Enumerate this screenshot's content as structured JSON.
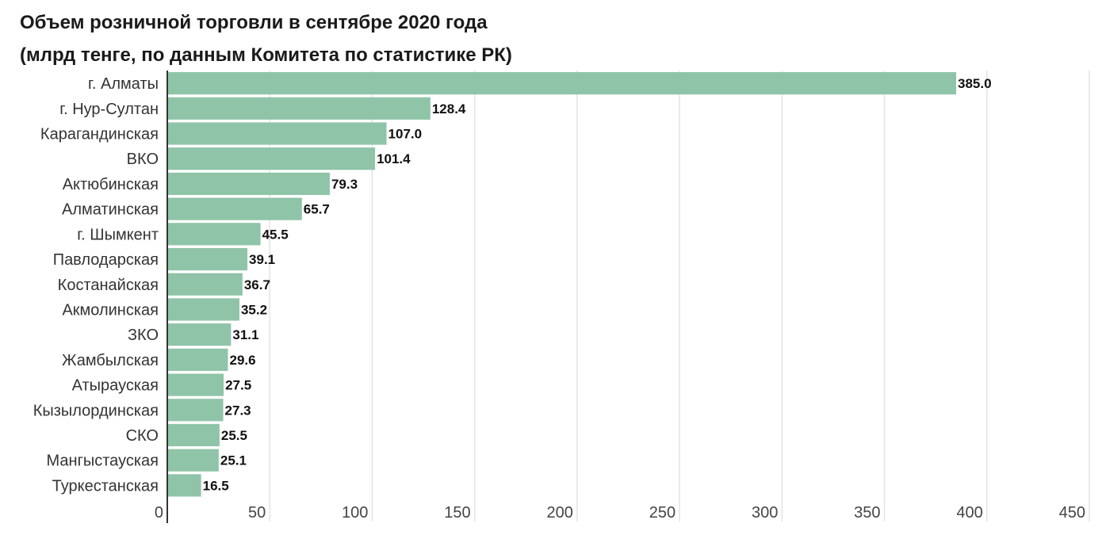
{
  "chart_data": {
    "type": "bar",
    "orientation": "horizontal",
    "title": "Объем розничной торговли в сентябре 2020 года",
    "subtitle": "(млрд тенге, по данным Комитета по статистике РК)",
    "categories": [
      "г. Алматы",
      "г. Нур-Султан",
      "Карагандинская",
      "ВКО",
      "Актюбинская",
      "Алматинская",
      "г. Шымкент",
      "Павлодарская",
      "Костанайская",
      "Акмолинская",
      "ЗКО",
      "Жамбылская",
      "Атырауская",
      "Кызылординская",
      "СКО",
      "Мангыстауская",
      "Туркестанская"
    ],
    "values": [
      385.0,
      128.4,
      107.0,
      101.4,
      79.3,
      65.7,
      45.5,
      39.1,
      36.7,
      35.2,
      31.1,
      29.6,
      27.5,
      27.3,
      25.5,
      25.1,
      16.5
    ],
    "value_labels": [
      "385.0",
      "128.4",
      "107.0",
      "101.4",
      "79.3",
      "65.7",
      "45.5",
      "39.1",
      "36.7",
      "35.2",
      "31.1",
      "29.6",
      "27.5",
      "27.3",
      "25.5",
      "25.1",
      "16.5"
    ],
    "xlim": [
      0,
      450
    ],
    "xticks": [
      0,
      50,
      100,
      150,
      200,
      250,
      300,
      350,
      400,
      450
    ],
    "xtick_labels": [
      "0",
      "50",
      "100",
      "150",
      "200",
      "250",
      "300",
      "350",
      "400",
      "450"
    ],
    "grid": true,
    "bar_color": "#8fc4a8",
    "grid_color": "#e3e3e3"
  }
}
